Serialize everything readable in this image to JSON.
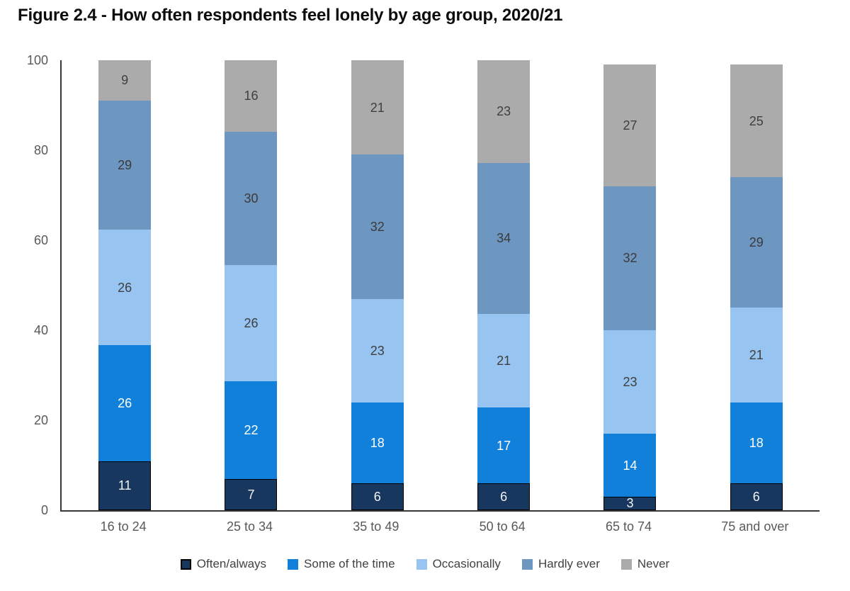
{
  "title": "Figure 2.4 - How often respondents feel lonely by age group, 2020/21",
  "chart_data": {
    "type": "bar",
    "stacked": true,
    "title": "Figure 2.4 - How often respondents feel lonely by age group, 2020/21",
    "categories": [
      "16 to 24",
      "25 to 34",
      "35 to 49",
      "50 to 64",
      "65 to 74",
      "75 and over"
    ],
    "series": [
      {
        "name": "Often/always",
        "color": "#17375F",
        "label_color": "#F2F2F2",
        "border_color": "#000000",
        "values": [
          11,
          7,
          6,
          6,
          3,
          6
        ]
      },
      {
        "name": "Some of the time",
        "color": "#1180DB",
        "label_color": "#FFFFFF",
        "border_color": "",
        "values": [
          26,
          22,
          18,
          17,
          14,
          18
        ]
      },
      {
        "name": "Occasionally",
        "color": "#97C4F0",
        "label_color": "#3F3F3F",
        "border_color": "",
        "values": [
          26,
          26,
          23,
          21,
          23,
          21
        ]
      },
      {
        "name": "Hardly ever",
        "color": "#6D96C1",
        "label_color": "#3A3A3A",
        "border_color": "",
        "values": [
          29,
          30,
          32,
          34,
          32,
          29
        ]
      },
      {
        "name": "Never",
        "color": "#ABABAB",
        "label_color": "#3F3F3F",
        "border_color": "",
        "values": [
          9,
          16,
          21,
          23,
          27,
          25
        ]
      }
    ],
    "y_ticks": [
      0,
      20,
      40,
      60,
      80,
      100
    ],
    "ylim": [
      0,
      100
    ],
    "xlabel": "",
    "ylabel": "",
    "grid": false,
    "legend_position": "bottom"
  },
  "axis": {
    "tick_label_color": "#595959",
    "line_color": "#383838"
  }
}
